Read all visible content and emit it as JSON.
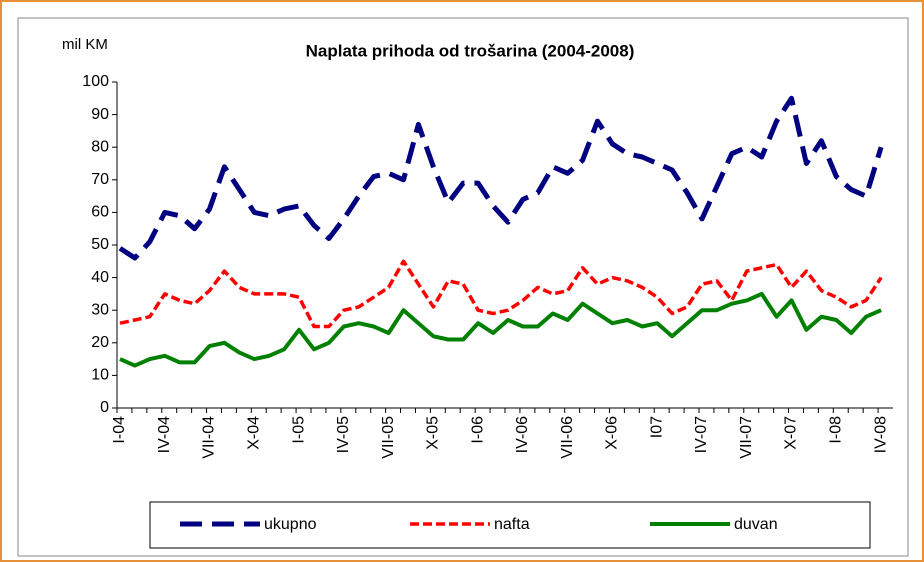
{
  "chart_data": {
    "type": "line",
    "title": "Naplata prihoda od trošarina (2004-2008)",
    "y_label": "mil KM",
    "categories": [
      "I-04",
      null,
      null,
      "IV-04",
      null,
      null,
      "VII-04",
      null,
      null,
      "X-04",
      null,
      null,
      "I-05",
      null,
      null,
      "IV-05",
      null,
      null,
      "VII-05",
      null,
      null,
      "X-05",
      null,
      null,
      "I-06",
      null,
      null,
      "IV-06",
      null,
      null,
      "VII-06",
      null,
      null,
      "X-06",
      null,
      null,
      "I07",
      null,
      null,
      "IV-07",
      null,
      null,
      "VII-07",
      null,
      null,
      "X-07",
      null,
      null,
      "I-08",
      null,
      null,
      "IV-08"
    ],
    "series": [
      {
        "name": "ukupno",
        "color": "#000080",
        "values": [
          49,
          46,
          51,
          60,
          59,
          55,
          61,
          74,
          67,
          60,
          59,
          61,
          62,
          56,
          52,
          58,
          65,
          71,
          72,
          70,
          87,
          74,
          63,
          69,
          69,
          62,
          57,
          64,
          66,
          74,
          72,
          76,
          88,
          81,
          78,
          77,
          75,
          73,
          66,
          58,
          68,
          78,
          80,
          77,
          88,
          95,
          75,
          82,
          71,
          67,
          65,
          80
        ]
      },
      {
        "name": "nafta",
        "color": "#ff0000",
        "values": [
          26,
          27,
          28,
          35,
          33,
          32,
          36,
          42,
          37,
          35,
          35,
          35,
          34,
          25,
          25,
          30,
          31,
          34,
          37,
          45,
          38,
          31,
          39,
          38,
          30,
          29,
          30,
          33,
          37,
          35,
          36,
          43,
          38,
          40,
          39,
          37,
          34,
          29,
          31,
          38,
          39,
          33,
          42,
          43,
          44,
          37,
          42,
          36,
          34,
          31,
          33,
          40
        ]
      },
      {
        "name": "duvan",
        "color": "#008000",
        "values": [
          15,
          13,
          15,
          16,
          14,
          14,
          19,
          20,
          17,
          15,
          16,
          18,
          24,
          18,
          20,
          25,
          26,
          25,
          23,
          30,
          26,
          22,
          21,
          21,
          26,
          23,
          27,
          25,
          25,
          29,
          27,
          32,
          29,
          26,
          27,
          25,
          26,
          22,
          26,
          30,
          30,
          32,
          33,
          35,
          28,
          33,
          24,
          28,
          27,
          23,
          28,
          30
        ]
      }
    ],
    "ylim": [
      0,
      100
    ],
    "yticks": [
      0,
      10,
      20,
      30,
      40,
      50,
      60,
      70,
      80,
      90,
      100
    ],
    "grid": false
  }
}
